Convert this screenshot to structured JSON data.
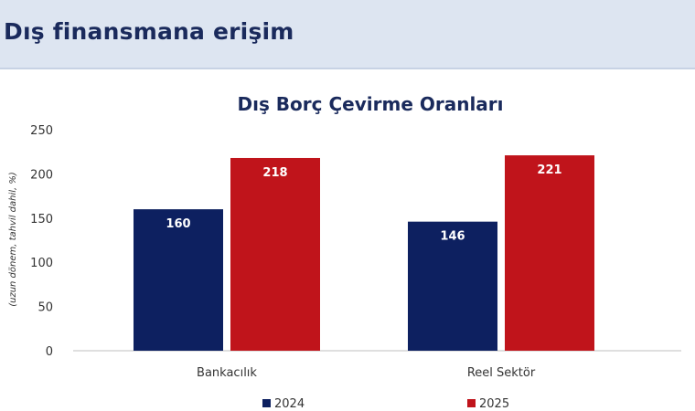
{
  "header": {
    "title": "Dış finansmana erişim"
  },
  "chart_data": {
    "type": "bar",
    "title": "Dış Borç Çevirme Oranları",
    "ylabel": "(uzun dönem, tahvil dahil, %)",
    "xlabel": "",
    "categories": [
      "Bankacılık",
      "Reel Sektör"
    ],
    "series": [
      {
        "name": "2024",
        "color": "#0d2060",
        "values": [
          160,
          146
        ]
      },
      {
        "name": "2025",
        "color": "#c0141b",
        "values": [
          218,
          221
        ]
      }
    ],
    "ylim": [
      0,
      250
    ],
    "yticks": [
      0,
      50,
      100,
      150,
      200,
      250
    ],
    "grid": false,
    "legend": "bottom"
  }
}
